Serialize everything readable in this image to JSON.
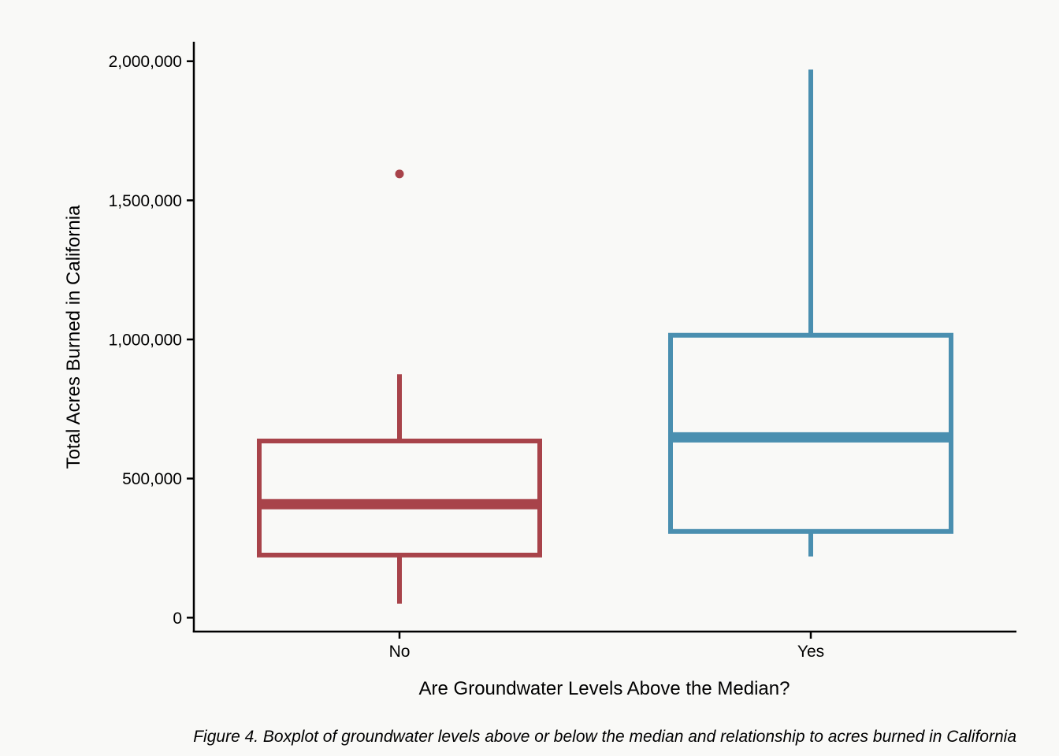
{
  "chart_data": {
    "type": "boxplot",
    "xlabel": "Are Groundwater Levels Above the Median?",
    "ylabel": "Total Acres Burned in California",
    "caption": "Figure 4. Boxplot of groundwater levels above or below the median and relationship to acres burned in California",
    "categories": [
      "No",
      "Yes"
    ],
    "ylim": [
      -50000,
      2070000
    ],
    "yticks": [
      0,
      500000,
      1000000,
      1500000,
      2000000
    ],
    "ytick_labels": [
      "0",
      "500,000",
      "1,000,000",
      "1,500,000",
      "2,000,000"
    ],
    "grid": false,
    "legend": "none",
    "boxes": [
      {
        "category": "No",
        "whisker_low": 50000,
        "q1": 225000,
        "median": 408000,
        "q3": 635000,
        "whisker_high": 875000,
        "outliers": [
          1595000
        ],
        "color": "#a8434a"
      },
      {
        "category": "Yes",
        "whisker_low": 220000,
        "q1": 310000,
        "median": 648000,
        "q3": 1015000,
        "whisker_high": 1970000,
        "outliers": [],
        "color": "#4a8fb0"
      }
    ]
  }
}
